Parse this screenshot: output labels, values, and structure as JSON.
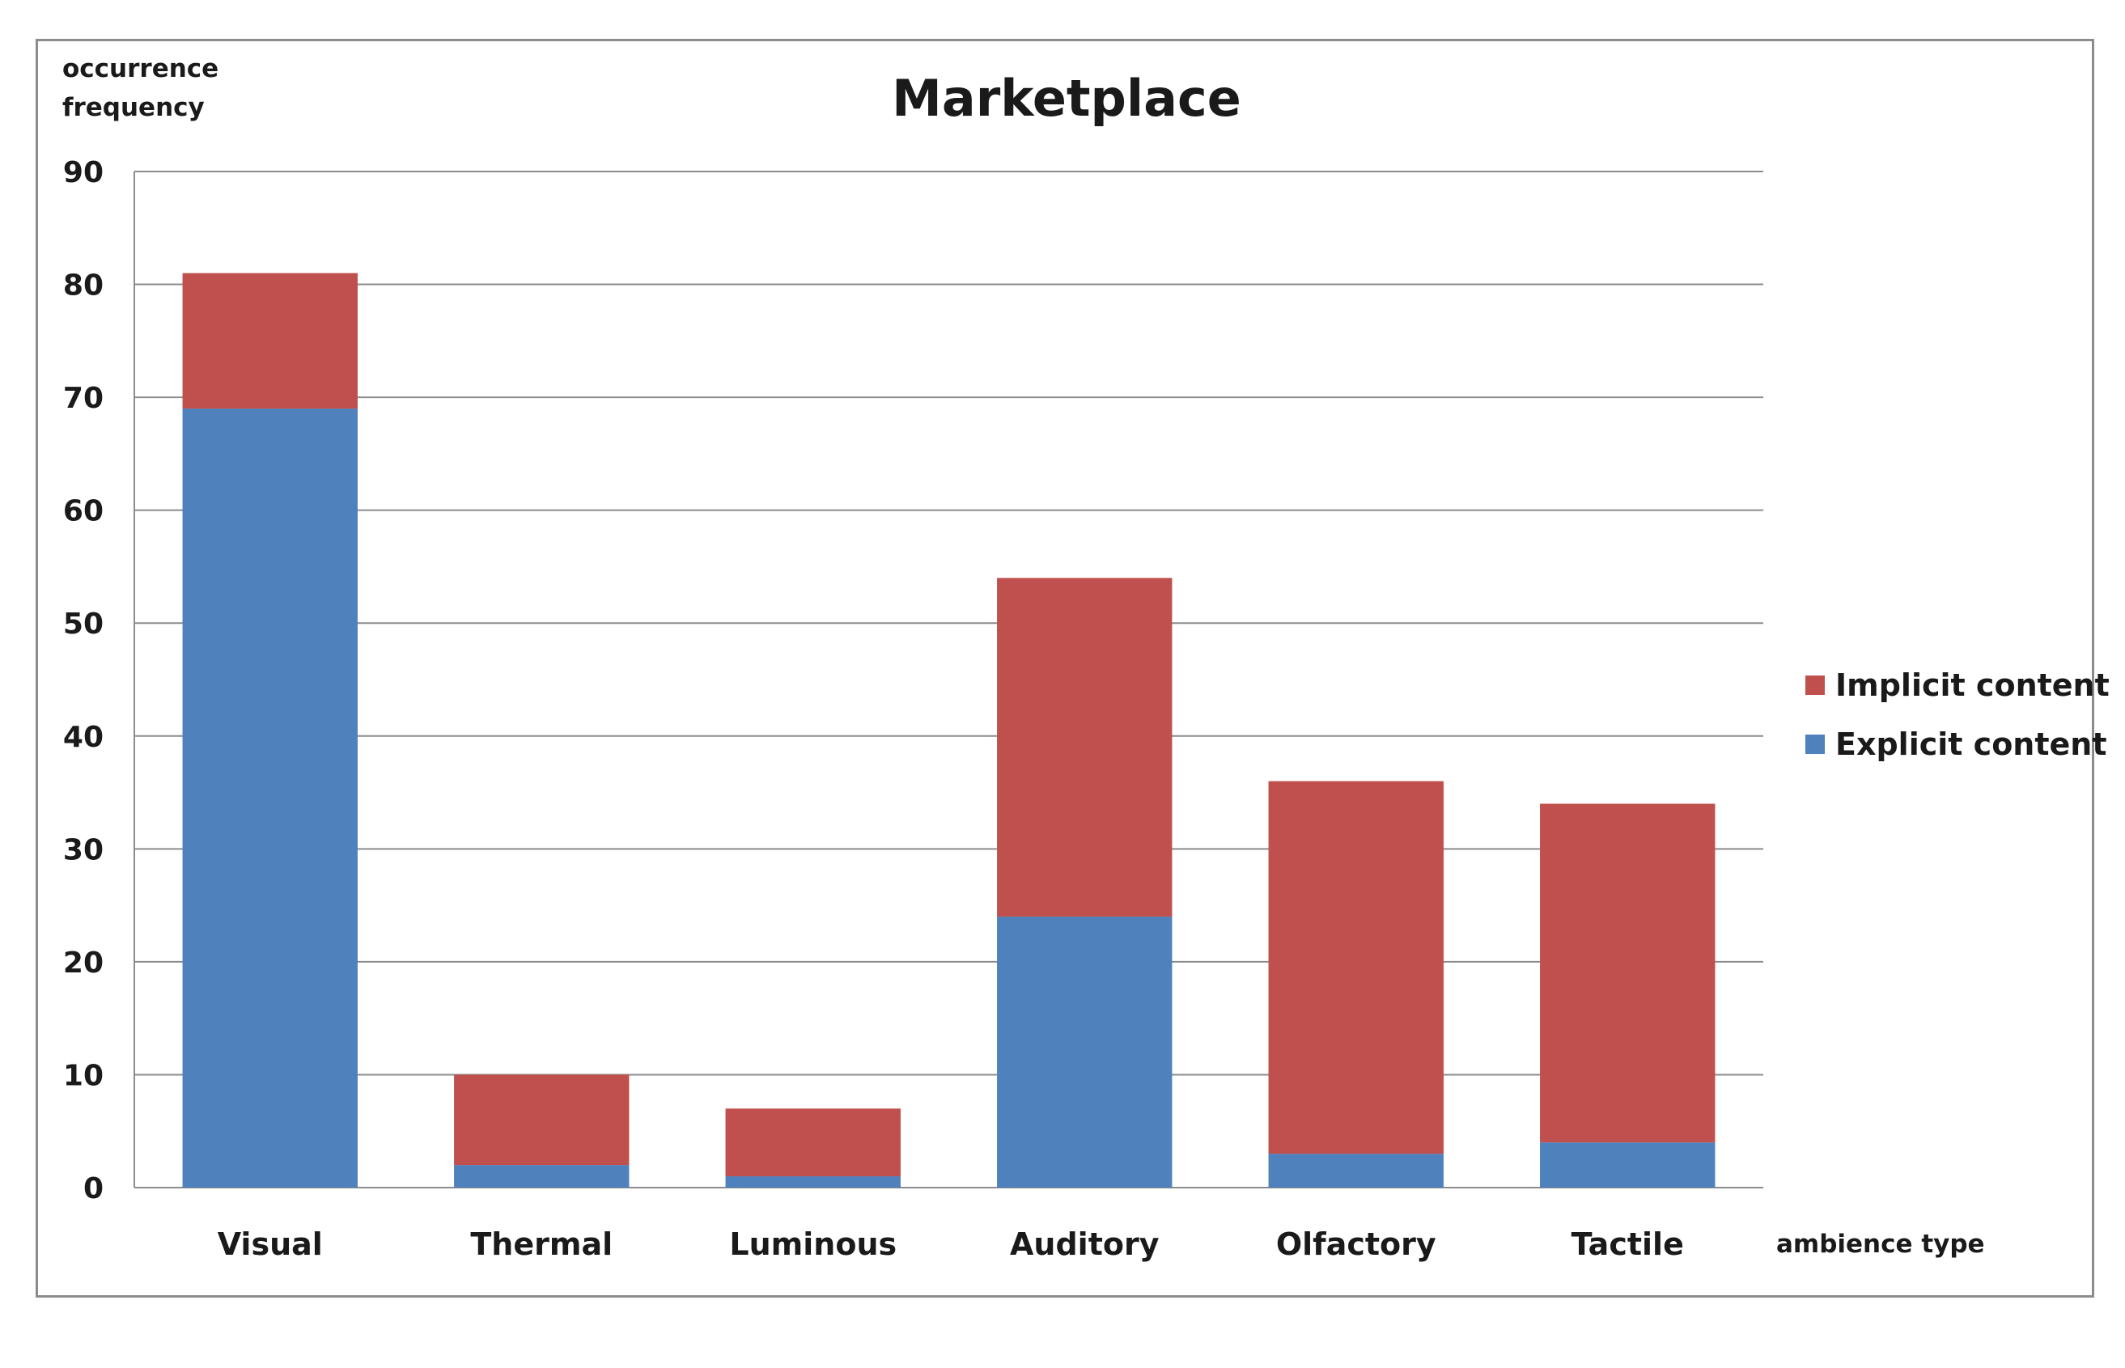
{
  "chart_data": {
    "type": "bar",
    "stacked": true,
    "title": "Marketplace",
    "ylabel": [
      "occurrence",
      "frequency"
    ],
    "xlabel": "ambience type",
    "categories": [
      "Visual",
      "Thermal",
      "Luminous",
      "Auditory",
      "Olfactory",
      "Tactile"
    ],
    "series": [
      {
        "name": "Explicit content",
        "color": "#4f81bd",
        "values": [
          69,
          2,
          1,
          24,
          3,
          4
        ]
      },
      {
        "name": "Implicit content",
        "color": "#c0504d",
        "values": [
          12,
          8,
          6,
          30,
          33,
          30
        ]
      }
    ],
    "ylim": [
      0,
      90
    ],
    "yticks": [
      0,
      10,
      20,
      30,
      40,
      50,
      60,
      70,
      80,
      90
    ],
    "grid": true,
    "legend": {
      "position": "right",
      "order": [
        "Implicit content",
        "Explicit content"
      ]
    }
  }
}
